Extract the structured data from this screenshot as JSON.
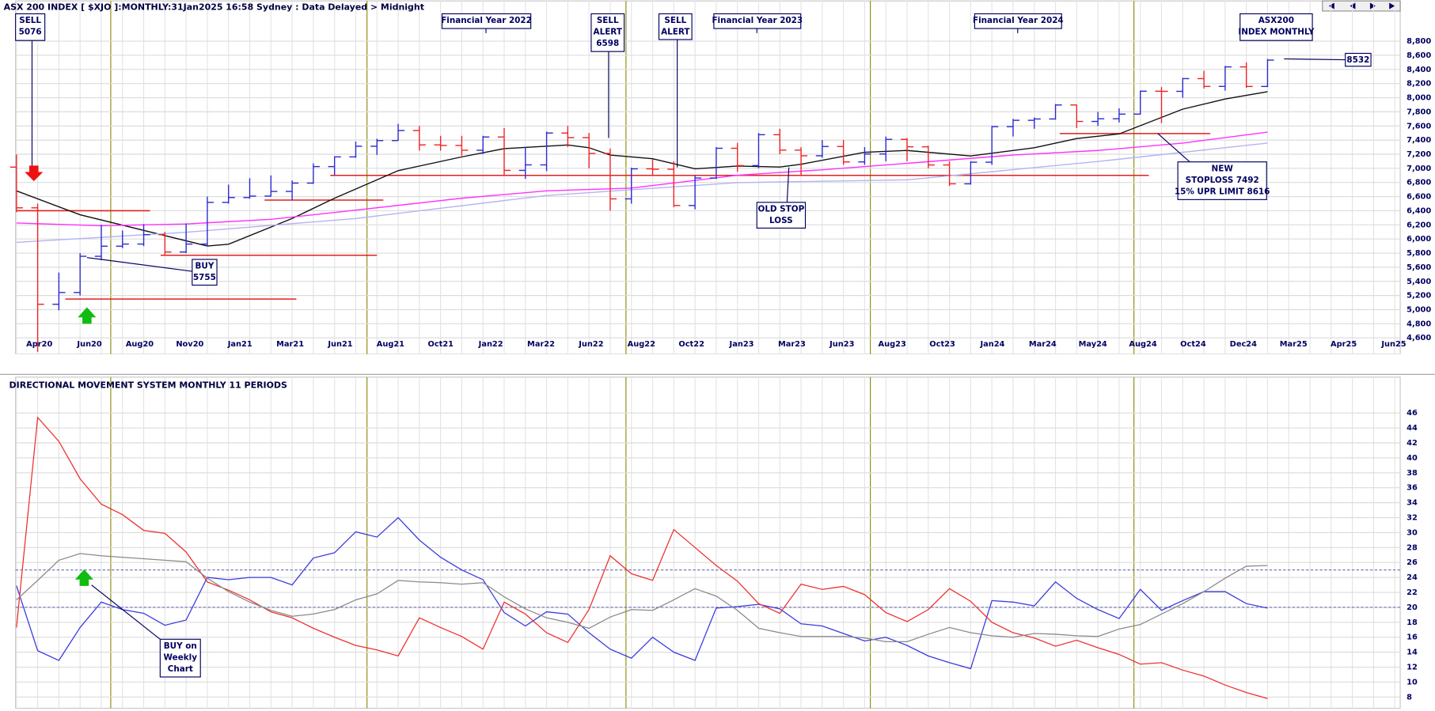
{
  "chart_data": [
    {
      "type": "ohlc",
      "title": "ASX 200 INDEX [ $XJO ]:MONTHLY:31Jan2025 16:58 Sydney : Data Delayed > Midnight",
      "categories": [
        "Apr20",
        "Jun20",
        "Aug20",
        "Nov20",
        "Jan21",
        "Mar21",
        "Jun21",
        "Aug21",
        "Oct21",
        "Jan22",
        "Mar22",
        "Jun22",
        "Aug22",
        "Oct22",
        "Jan23",
        "Mar23",
        "Jun23",
        "Aug23",
        "Oct23",
        "Jan24",
        "Mar24",
        "May24",
        "Aug24",
        "Oct24",
        "Dec24",
        "Mar25",
        "Apr25",
        "Jun25"
      ],
      "bars": {
        "open": [
          7017,
          6441,
          5076,
          5242,
          5755,
          5898,
          5928,
          6061,
          5816,
          5928,
          6518,
          6587,
          6607,
          6673,
          6791,
          7025,
          7162,
          7313,
          7393,
          7535,
          7332,
          7324,
          7256,
          7444,
          6971,
          7049,
          7500,
          7435,
          7211,
          6568,
          6993,
          6987,
          6474,
          6863,
          7284,
          7039,
          7476,
          7258,
          7178,
          7309,
          7091,
          7203,
          7410,
          7305,
          7048,
          6781,
          7087,
          7590,
          7680,
          7699,
          7897,
          7664,
          7702,
          7768,
          8092,
          8090,
          8270,
          8160,
          8436,
          8159
        ],
        "high": [
          7197,
          6500,
          5525,
          5800,
          6200,
          6120,
          6210,
          6100,
          6220,
          6600,
          6770,
          6860,
          6900,
          6830,
          7070,
          7170,
          7380,
          7420,
          7630,
          7600,
          7460,
          7460,
          7460,
          7570,
          7300,
          7520,
          7600,
          7500,
          7280,
          7010,
          7130,
          7100,
          6900,
          7300,
          7360,
          7500,
          7560,
          7300,
          7400,
          7400,
          7300,
          7450,
          7430,
          7320,
          7100,
          7100,
          7600,
          7700,
          7720,
          7910,
          7900,
          7800,
          7850,
          8100,
          8150,
          8280,
          8380,
          8450,
          8500,
          8550
        ],
        "low": [
          6380,
          4402,
          4990,
          5200,
          5700,
          5870,
          5900,
          5763,
          5800,
          5900,
          6500,
          6570,
          6600,
          6550,
          6780,
          6900,
          7150,
          7190,
          7390,
          7250,
          7250,
          7180,
          7200,
          6900,
          6850,
          6960,
          7300,
          7000,
          6400,
          6500,
          6900,
          6450,
          6420,
          6850,
          6950,
          7000,
          7200,
          6900,
          7150,
          7050,
          7050,
          7100,
          7100,
          7000,
          6750,
          6770,
          7050,
          7450,
          7560,
          7690,
          7570,
          7600,
          7650,
          7760,
          7640,
          8000,
          8130,
          8100,
          8140,
          8150
        ],
        "close": [
          6441,
          5076,
          5242,
          5755,
          5898,
          5928,
          6061,
          5816,
          5928,
          6518,
          6587,
          6607,
          6673,
          6791,
          7025,
          7162,
          7313,
          7393,
          7535,
          7332,
          7324,
          7256,
          7444,
          6971,
          7049,
          7500,
          7435,
          7211,
          6568,
          6993,
          6987,
          6474,
          6863,
          7284,
          7039,
          7476,
          7258,
          7178,
          7309,
          7091,
          7203,
          7410,
          7305,
          7048,
          6781,
          7087,
          7590,
          7680,
          7699,
          7897,
          7664,
          7702,
          7768,
          8092,
          8090,
          8270,
          8160,
          8436,
          8159,
          8532
        ]
      },
      "up_color": "#2a2ad0",
      "down_color": "#ee2222",
      "lines": [
        {
          "color": "#111111",
          "x": [
            0,
            3,
            9,
            10,
            13,
            15,
            18,
            21,
            23,
            26,
            27,
            28,
            30,
            32,
            34,
            36,
            37,
            40,
            42,
            45,
            48,
            50,
            52,
            55,
            57,
            59
          ],
          "values": [
            6681,
            6343,
            5900,
            5926,
            6290,
            6577,
            6967,
            7162,
            7279,
            7331,
            7292,
            7188,
            7136,
            6993,
            7032,
            7019,
            7058,
            7227,
            7253,
            7175,
            7292,
            7422,
            7487,
            7838,
            7981,
            8085
          ]
        },
        {
          "color": "#ff30ff",
          "x": [
            0,
            4,
            8,
            12,
            16,
            21,
            25,
            29,
            34,
            38,
            42,
            47,
            51,
            55,
            59
          ],
          "values": [
            6226,
            6187,
            6213,
            6278,
            6408,
            6577,
            6681,
            6720,
            6902,
            6980,
            7071,
            7188,
            7253,
            7357,
            7513
          ]
        },
        {
          "color": "#b4b4f2",
          "x": [
            0,
            8,
            16,
            25,
            34,
            42,
            51,
            59
          ],
          "values": [
            5952,
            6095,
            6290,
            6616,
            6798,
            6837,
            7097,
            7357
          ]
        }
      ],
      "levels": [
        {
          "value": 6400,
          "x": [
            0,
            6.3
          ]
        },
        {
          "value": 5150,
          "x": [
            2.3,
            13.2
          ]
        },
        {
          "value": 5770,
          "x": [
            6.8,
            17
          ]
        },
        {
          "value": 6550,
          "x": [
            11.7,
            17.3
          ]
        },
        {
          "value": 6900,
          "x": [
            14.8,
            53.4
          ]
        },
        {
          "value": 7492,
          "x": [
            49.2,
            56.3
          ]
        }
      ],
      "level_color": "#e02020",
      "ylim": [
        4370,
        9370
      ],
      "yticks": [
        {
          "value": 4600,
          "label": "4,600"
        },
        {
          "value": 4800,
          "label": "4,800"
        },
        {
          "value": 5000,
          "label": "5,000"
        },
        {
          "value": 5200,
          "label": "5,200"
        },
        {
          "value": 5400,
          "label": "5,400"
        },
        {
          "value": 5600,
          "label": "5,600"
        },
        {
          "value": 5800,
          "label": "5,800"
        },
        {
          "value": 6000,
          "label": "6,000"
        },
        {
          "value": 6200,
          "label": "6,200"
        },
        {
          "value": 6400,
          "label": "6,400"
        },
        {
          "value": 6600,
          "label": "6,600"
        },
        {
          "value": 6800,
          "label": "6,800"
        },
        {
          "value": 7000,
          "label": "7,000"
        },
        {
          "value": 7200,
          "label": "7,200"
        },
        {
          "value": 7400,
          "label": "7,400"
        },
        {
          "value": 7600,
          "label": "7,600"
        },
        {
          "value": 7800,
          "label": "7,800"
        },
        {
          "value": 8000,
          "label": "8,000"
        },
        {
          "value": 8200,
          "label": "8,200"
        },
        {
          "value": 8400,
          "label": "8,400"
        },
        {
          "value": 8600,
          "label": "8,600"
        },
        {
          "value": 8800,
          "label": "8,800"
        }
      ],
      "grid": true,
      "annotations": [
        {
          "lines": [
            "SELL",
            "5076"
          ]
        },
        {
          "lines": [
            "Financial Year 2022"
          ]
        },
        {
          "lines": [
            "SELL",
            "ALERT",
            "6598"
          ]
        },
        {
          "lines": [
            "SELL",
            "ALERT"
          ]
        },
        {
          "lines": [
            "Financial Year 2023"
          ]
        },
        {
          "lines": [
            "Financial Year 2024"
          ]
        },
        {
          "lines": [
            "ASX200",
            "INDEX MONTHLY"
          ]
        },
        {
          "lines": [
            "8532"
          ]
        },
        {
          "lines": [
            "NEW",
            "STOPLOSS 7492",
            "15% UPR LIMIT 8616"
          ]
        },
        {
          "lines": [
            "OLD STOP",
            "LOSS"
          ]
        },
        {
          "lines": [
            "BUY",
            "5755"
          ]
        },
        {
          "lines": [
            "BUY on",
            "Weekly",
            "Chart"
          ]
        }
      ]
    },
    {
      "type": "line",
      "title": "DIRECTIONAL MOVEMENT SYSTEM MONTHLY 11 PERIODS",
      "series": [
        {
          "color": "#3a3ae0",
          "values": [
            22.9,
            14.2,
            12.9,
            17.3,
            20.7,
            19.7,
            19.2,
            17.6,
            18.3,
            24,
            23.7,
            24,
            24,
            23,
            26.6,
            27.3,
            30.1,
            29.4,
            32,
            29,
            26.7,
            25,
            23.7,
            19.3,
            17.5,
            19.4,
            19.1,
            16.6,
            14.4,
            13.2,
            16,
            14,
            12.9,
            19.9,
            20.1,
            20.4,
            19.8,
            17.8,
            17.5,
            16.5,
            15.5,
            16,
            14.9,
            13.5,
            12.6,
            11.8,
            20.9,
            20.7,
            20.2,
            23.4,
            21.2,
            19.7,
            18.5,
            22.4,
            19.6,
            20.9,
            22.1,
            22.1,
            20.5,
            19.9
          ]
        },
        {
          "color": "#ee3030",
          "values": [
            17.3,
            45.4,
            42.2,
            37.2,
            33.8,
            32.4,
            30.3,
            29.9,
            27.4,
            23.4,
            22.3,
            21,
            19.4,
            18.6,
            17.2,
            16,
            14.9,
            14.3,
            13.5,
            18.6,
            17.3,
            16.1,
            14.4,
            20.7,
            19.1,
            16.6,
            15.3,
            19.7,
            26.9,
            24.5,
            23.6,
            30.4,
            28,
            25.6,
            23.5,
            20.5,
            19.2,
            23.1,
            22.4,
            22.8,
            21.7,
            19.3,
            18.1,
            19.7,
            22.5,
            20.8,
            18,
            16.6,
            15.9,
            14.8,
            15.6,
            14.6,
            13.7,
            12.4,
            12.6,
            11.6,
            10.8,
            9.6,
            8.6,
            7.8
          ]
        },
        {
          "color": "#8a8a8a",
          "values": [
            21,
            23.6,
            26.3,
            27.2,
            26.9,
            26.7,
            26.5,
            26.3,
            26.1,
            23.9,
            22.1,
            20.7,
            19.6,
            18.8,
            19.1,
            19.7,
            21,
            21.8,
            23.6,
            23.4,
            23.3,
            23.1,
            23.3,
            21.4,
            19.8,
            18.6,
            18,
            17.2,
            18.7,
            19.7,
            19.6,
            21,
            22.5,
            21.5,
            19.6,
            17.2,
            16.6,
            16.1,
            16.1,
            16.1,
            15.9,
            15.4,
            15.4,
            16.4,
            17.3,
            16.6,
            16.2,
            16,
            16.5,
            16.4,
            16.2,
            16.1,
            17.1,
            17.7,
            19.1,
            20.5,
            22.1,
            23.9,
            25.5,
            25.6
          ]
        }
      ],
      "ref_lines": [
        20,
        25
      ],
      "ylim": [
        6.5,
        50.8
      ],
      "yticks": [
        8,
        10,
        12,
        14,
        16,
        18,
        20,
        22,
        24,
        26,
        28,
        30,
        32,
        34,
        36,
        38,
        40,
        42,
        44,
        46
      ],
      "grid": true
    }
  ]
}
